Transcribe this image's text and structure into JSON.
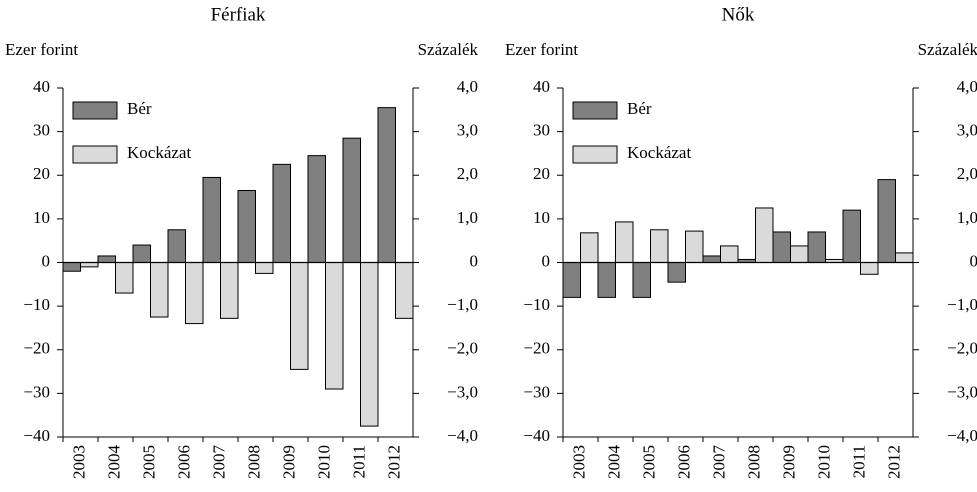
{
  "chart_data": [
    {
      "type": "bar",
      "title": "Férfiak",
      "y_label": "Ezer forint",
      "y2_label": "Százalék",
      "categories": [
        "2003",
        "2004",
        "2005",
        "2006",
        "2007",
        "2008",
        "2009",
        "2010",
        "2011",
        "2012"
      ],
      "series": [
        {
          "name": "Bér",
          "color": "#808080",
          "values": [
            -2,
            1.5,
            4,
            7.5,
            19.5,
            16.5,
            22.5,
            24.5,
            28.5,
            35.5
          ]
        },
        {
          "name": "Kockázat",
          "color": "#dadada",
          "axis": "y2",
          "values": [
            -0.1,
            -0.7,
            -1.25,
            -1.4,
            -1.28,
            -0.25,
            -2.45,
            -2.9,
            -3.75,
            -1.28
          ]
        }
      ],
      "ylim": [
        -40,
        40
      ],
      "yticks": [
        {
          "value": -40,
          "label": "−40"
        },
        {
          "value": -30,
          "label": "−30"
        },
        {
          "value": -20,
          "label": "−20"
        },
        {
          "value": -10,
          "label": "−10"
        },
        0,
        10,
        20,
        30,
        40
      ],
      "y2lim": [
        -4,
        4
      ],
      "y2ticks": [
        {
          "value": -4,
          "label": "−4,0"
        },
        {
          "value": -3,
          "label": "−3,0"
        },
        {
          "value": -2,
          "label": "−2,0"
        },
        {
          "value": -1,
          "label": "−1,0"
        },
        0,
        {
          "value": 1,
          "label": "1,0"
        },
        {
          "value": 2,
          "label": "2,0"
        },
        {
          "value": 3,
          "label": "3,0"
        },
        {
          "value": 4,
          "label": "4,0"
        }
      ],
      "legend": "upper left"
    },
    {
      "type": "bar",
      "title": "Nők",
      "y_label": "Ezer forint",
      "y2_label": "Százalék",
      "categories": [
        "2003",
        "2004",
        "2005",
        "2006",
        "2007",
        "2008",
        "2009",
        "2010",
        "2011",
        "2012"
      ],
      "series": [
        {
          "name": "Bér",
          "color": "#808080",
          "values": [
            -8,
            -8,
            -8,
            -4.5,
            1.5,
            0.7,
            7,
            7,
            12,
            19
          ]
        },
        {
          "name": "Kockázat",
          "color": "#dadada",
          "axis": "y2",
          "values": [
            0.68,
            0.93,
            0.75,
            0.72,
            0.38,
            1.25,
            0.38,
            0.07,
            -0.27,
            0.22
          ]
        }
      ],
      "ylim": [
        -40,
        40
      ],
      "yticks": [
        {
          "value": -40,
          "label": "−40"
        },
        {
          "value": -30,
          "label": "−30"
        },
        {
          "value": -20,
          "label": "−20"
        },
        {
          "value": -10,
          "label": "−10"
        },
        0,
        10,
        20,
        30,
        40
      ],
      "y2lim": [
        -4,
        4
      ],
      "y2ticks": [
        {
          "value": -4,
          "label": "−4,0"
        },
        {
          "value": -3,
          "label": "−3,0"
        },
        {
          "value": -2,
          "label": "−2,0"
        },
        {
          "value": -1,
          "label": "−1,0"
        },
        0,
        {
          "value": 1,
          "label": "1,0"
        },
        {
          "value": 2,
          "label": "2,0"
        },
        {
          "value": 3,
          "label": "3,0"
        },
        {
          "value": 4,
          "label": "4,0"
        }
      ],
      "legend": "upper left"
    }
  ]
}
